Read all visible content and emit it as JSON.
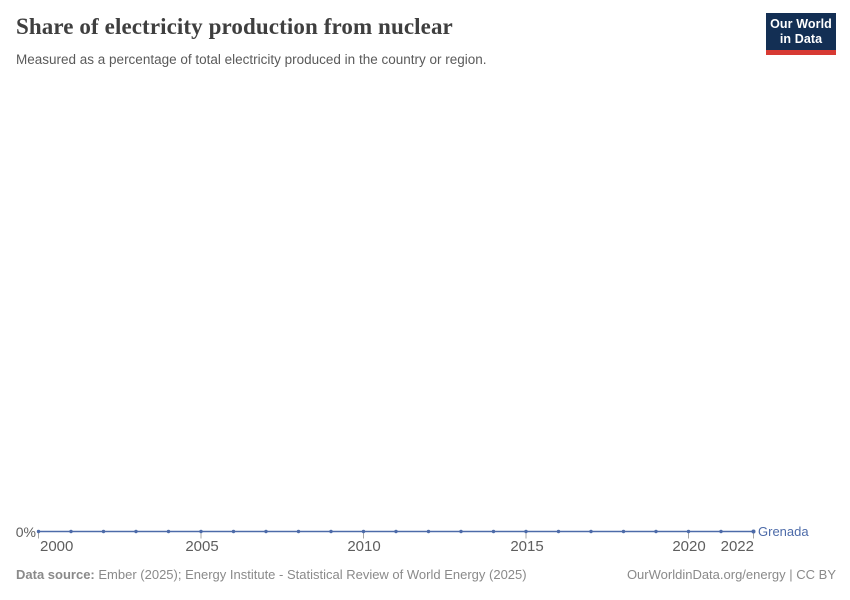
{
  "header": {
    "title": "Share of electricity production from nuclear",
    "subtitle": "Measured as a percentage of total electricity produced in the country or region.",
    "logo_line1": "Our World",
    "logo_line2": "in Data"
  },
  "chart_data": {
    "type": "line",
    "title": "Share of electricity production from nuclear",
    "subtitle": "Measured as a percentage of total electricity produced in the country or region.",
    "unit": "%",
    "x": [
      2000,
      2001,
      2002,
      2003,
      2004,
      2005,
      2006,
      2007,
      2008,
      2009,
      2010,
      2011,
      2012,
      2013,
      2014,
      2015,
      2016,
      2017,
      2018,
      2019,
      2020,
      2021,
      2022
    ],
    "series": [
      {
        "name": "Grenada",
        "values": [
          0,
          0,
          0,
          0,
          0,
          0,
          0,
          0,
          0,
          0,
          0,
          0,
          0,
          0,
          0,
          0,
          0,
          0,
          0,
          0,
          0,
          0,
          0
        ]
      }
    ],
    "x_range": [
      2000,
      2022
    ],
    "x_tick_labels": [
      "2000",
      "2005",
      "2010",
      "2015",
      "2020",
      "2022"
    ],
    "y_tick_labels": [
      "0%"
    ],
    "grid": false,
    "legend_position": "end-of-line-label",
    "line_color": "#4d6ba9",
    "marker": "circle"
  },
  "footer": {
    "source_label": "Data source:",
    "source_text": "Ember (2025); Energy Institute - Statistical Review of World Energy (2025)",
    "credit": "OurWorldinData.org/energy | CC BY"
  },
  "colors": {
    "series_blue": "#4d6ba9",
    "axis_text": "#5e5e5e",
    "tick_mark": "#a5a5a5",
    "title_text": "#3f3f3f",
    "footer_text": "#8a8a8a",
    "logo_navy": "#132f54",
    "logo_red": "#d73a33"
  }
}
